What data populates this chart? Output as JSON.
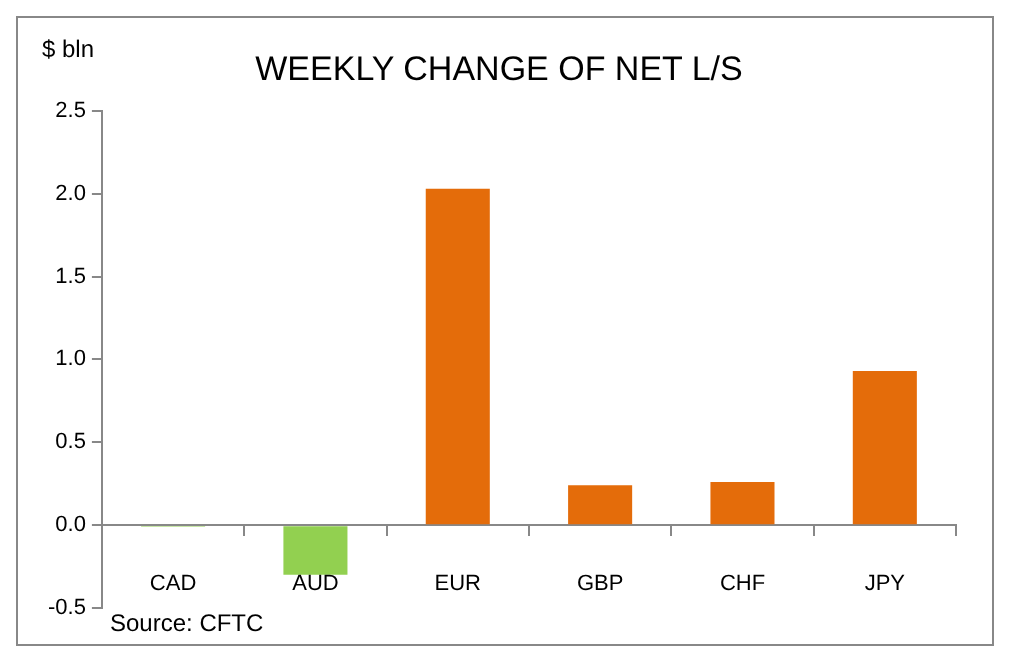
{
  "chart_data": {
    "type": "bar",
    "title": "WEEKLY CHANGE OF NET L/S",
    "ylabel": "$ bln",
    "categories": [
      "CAD",
      "AUD",
      "EUR",
      "GBP",
      "CHF",
      "JPY"
    ],
    "values": [
      -0.01,
      -0.3,
      2.03,
      0.24,
      0.26,
      0.93
    ],
    "colors": [
      "#92d050",
      "#92d050",
      "#e46c0a",
      "#e46c0a",
      "#e46c0a",
      "#e46c0a"
    ],
    "ylim": [
      -0.5,
      2.5
    ],
    "yticks": [
      {
        "value": -0.5,
        "label": "-0.5"
      },
      {
        "value": 0,
        "label": "0.0"
      },
      {
        "value": 0.5,
        "label": "0.5"
      },
      {
        "value": 1,
        "label": "1.0"
      },
      {
        "value": 1.5,
        "label": "1.5"
      },
      {
        "value": 2,
        "label": "2.0"
      },
      {
        "value": 2.5,
        "label": "2.5"
      }
    ],
    "grid": false,
    "annotations": [
      "Source: CFTC"
    ]
  }
}
